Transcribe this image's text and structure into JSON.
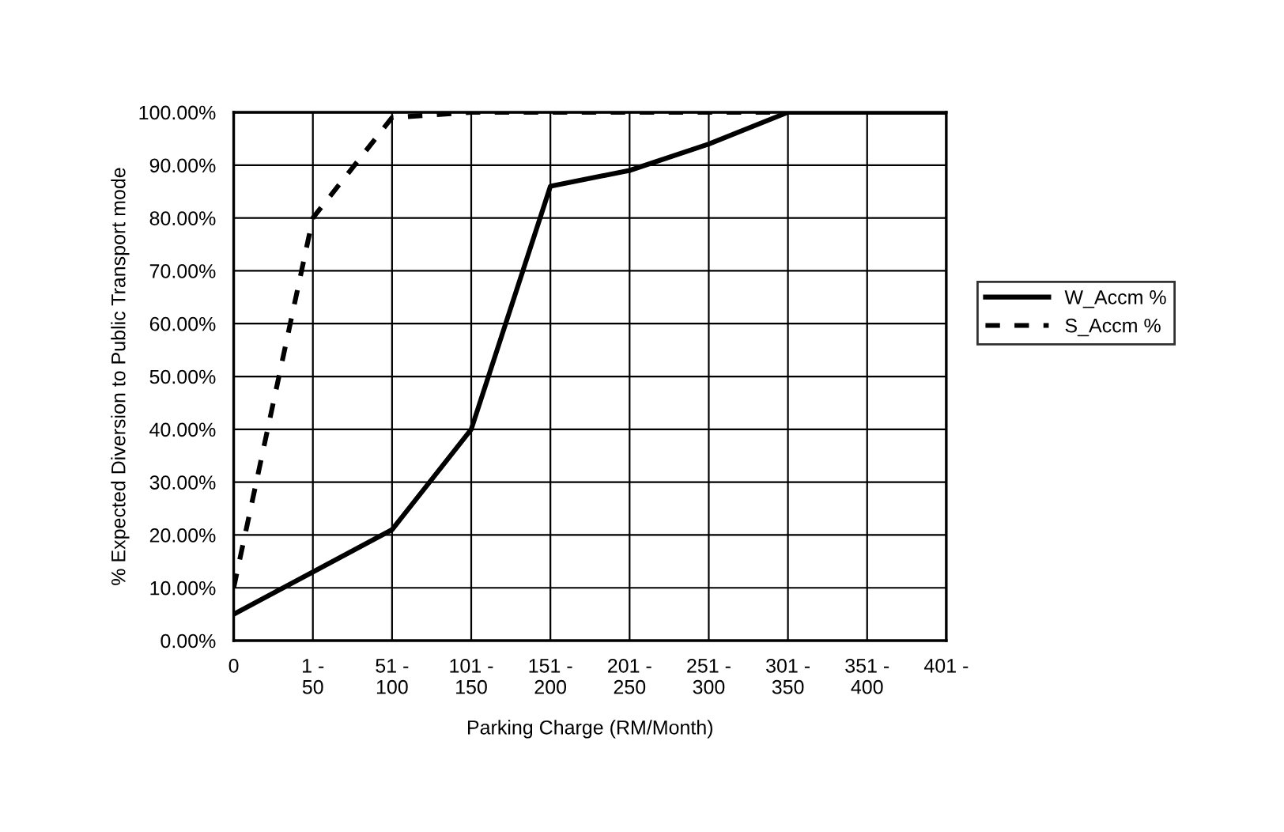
{
  "chart_data": {
    "type": "line",
    "xlabel": "Parking Charge (RM/Month)",
    "ylabel": "% Expected Diversion to Public Transport mode",
    "categories": [
      "0",
      "1 -\n50",
      "51 -\n100",
      "101 -\n150",
      "151 -\n200",
      "201 -\n250",
      "251 -\n300",
      "301 -\n350",
      "351 -\n400",
      "401 -"
    ],
    "series": [
      {
        "name": "W_Accm %",
        "color": "#000000",
        "line_style": "solid",
        "values": [
          5,
          13,
          21,
          40,
          86,
          89,
          94,
          100,
          100,
          100
        ]
      },
      {
        "name": "S_Accm %",
        "color": "#000000",
        "line_style": "dashed",
        "values": [
          10,
          80,
          99,
          100,
          100,
          100,
          100,
          100,
          100,
          100
        ]
      }
    ],
    "ylim": [
      0,
      100
    ],
    "yticks": [
      {
        "value": 0,
        "label": "0.00%"
      },
      {
        "value": 10,
        "label": "10.00%"
      },
      {
        "value": 20,
        "label": "20.00%"
      },
      {
        "value": 30,
        "label": "30.00%"
      },
      {
        "value": 40,
        "label": "40.00%"
      },
      {
        "value": 50,
        "label": "50.00%"
      },
      {
        "value": 60,
        "label": "60.00%"
      },
      {
        "value": 70,
        "label": "70.00%"
      },
      {
        "value": 80,
        "label": "80.00%"
      },
      {
        "value": 90,
        "label": "90.00%"
      },
      {
        "value": 100,
        "label": "100.00%"
      }
    ],
    "grid": true,
    "legend": "right",
    "marker": "none"
  }
}
